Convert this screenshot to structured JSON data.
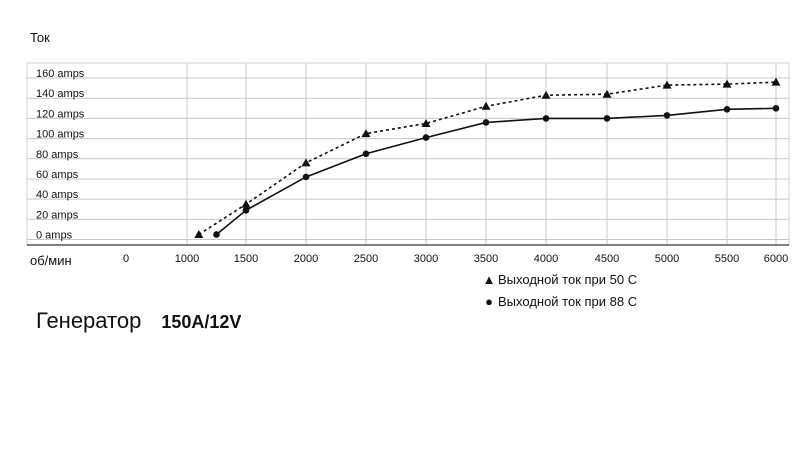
{
  "y_axis_label": "Ток",
  "x_axis_label": "об/мин",
  "footer": {
    "label": "Генератор",
    "model": "150A/12V"
  },
  "chart_data": {
    "type": "line",
    "xlabel": "об/мин",
    "ylabel": "Ток",
    "x_ticks": [
      0,
      1000,
      1500,
      2000,
      2500,
      3000,
      3500,
      4000,
      4500,
      5000,
      5500,
      6000
    ],
    "y_ticks": [
      "0 amps",
      "20 amps",
      "40 amps",
      "60 amps",
      "80 amps",
      "100 amps",
      "120 amps",
      "140 amps",
      "160 amps"
    ],
    "y_tick_values": [
      0,
      20,
      40,
      60,
      80,
      100,
      120,
      140,
      160
    ],
    "ylim": [
      0,
      160
    ],
    "grid": true,
    "legend_position": "bottom-right",
    "series": [
      {
        "name": "Выходной ток при 50 С",
        "marker": "triangle",
        "line_style": "dashed",
        "x": [
          1100,
          1500,
          2000,
          2500,
          3000,
          3500,
          4000,
          4500,
          5000,
          5500,
          6000
        ],
        "y": [
          0,
          30,
          71,
          100,
          110,
          127,
          138,
          139,
          148,
          149,
          151
        ]
      },
      {
        "name": "Выходной ток при 88 С",
        "marker": "circle",
        "line_style": "solid",
        "x": [
          1250,
          1500,
          2000,
          2500,
          3000,
          3500,
          4000,
          4500,
          5000,
          5500,
          6000
        ],
        "y": [
          0,
          24,
          57,
          80,
          96,
          111,
          115,
          115,
          118,
          124,
          125
        ]
      }
    ]
  }
}
